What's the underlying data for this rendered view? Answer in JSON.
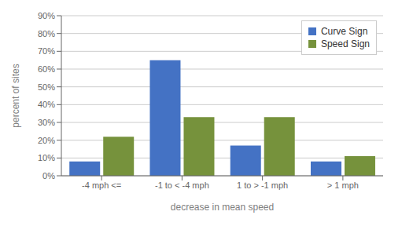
{
  "chart_data": {
    "type": "bar",
    "categories": [
      "-4 mph <=",
      "-1 to < -4 mph",
      "1 to > -1 mph",
      "> 1 mph"
    ],
    "series": [
      {
        "name": "Curve Sign",
        "color": "#4472C4",
        "values": [
          0.08,
          0.65,
          0.17,
          0.08
        ]
      },
      {
        "name": "Speed Sign",
        "color": "#76923C",
        "values": [
          0.22,
          0.33,
          0.33,
          0.11
        ]
      }
    ],
    "xlabel": "decrease in mean speed",
    "ylabel": "percent of sites",
    "ylim": [
      0,
      0.9
    ],
    "yticks": [
      {
        "value": 0.0,
        "label": "0%"
      },
      {
        "value": 0.1,
        "label": "10%"
      },
      {
        "value": 0.2,
        "label": "20%"
      },
      {
        "value": 0.3,
        "label": "30%"
      },
      {
        "value": 0.4,
        "label": "40%"
      },
      {
        "value": 0.5,
        "label": "50%"
      },
      {
        "value": 0.6,
        "label": "60%"
      },
      {
        "value": 0.7,
        "label": "70%"
      },
      {
        "value": 0.8,
        "label": "80%"
      },
      {
        "value": 0.9,
        "label": "90%"
      }
    ],
    "grid": true,
    "legend": "upper right"
  }
}
